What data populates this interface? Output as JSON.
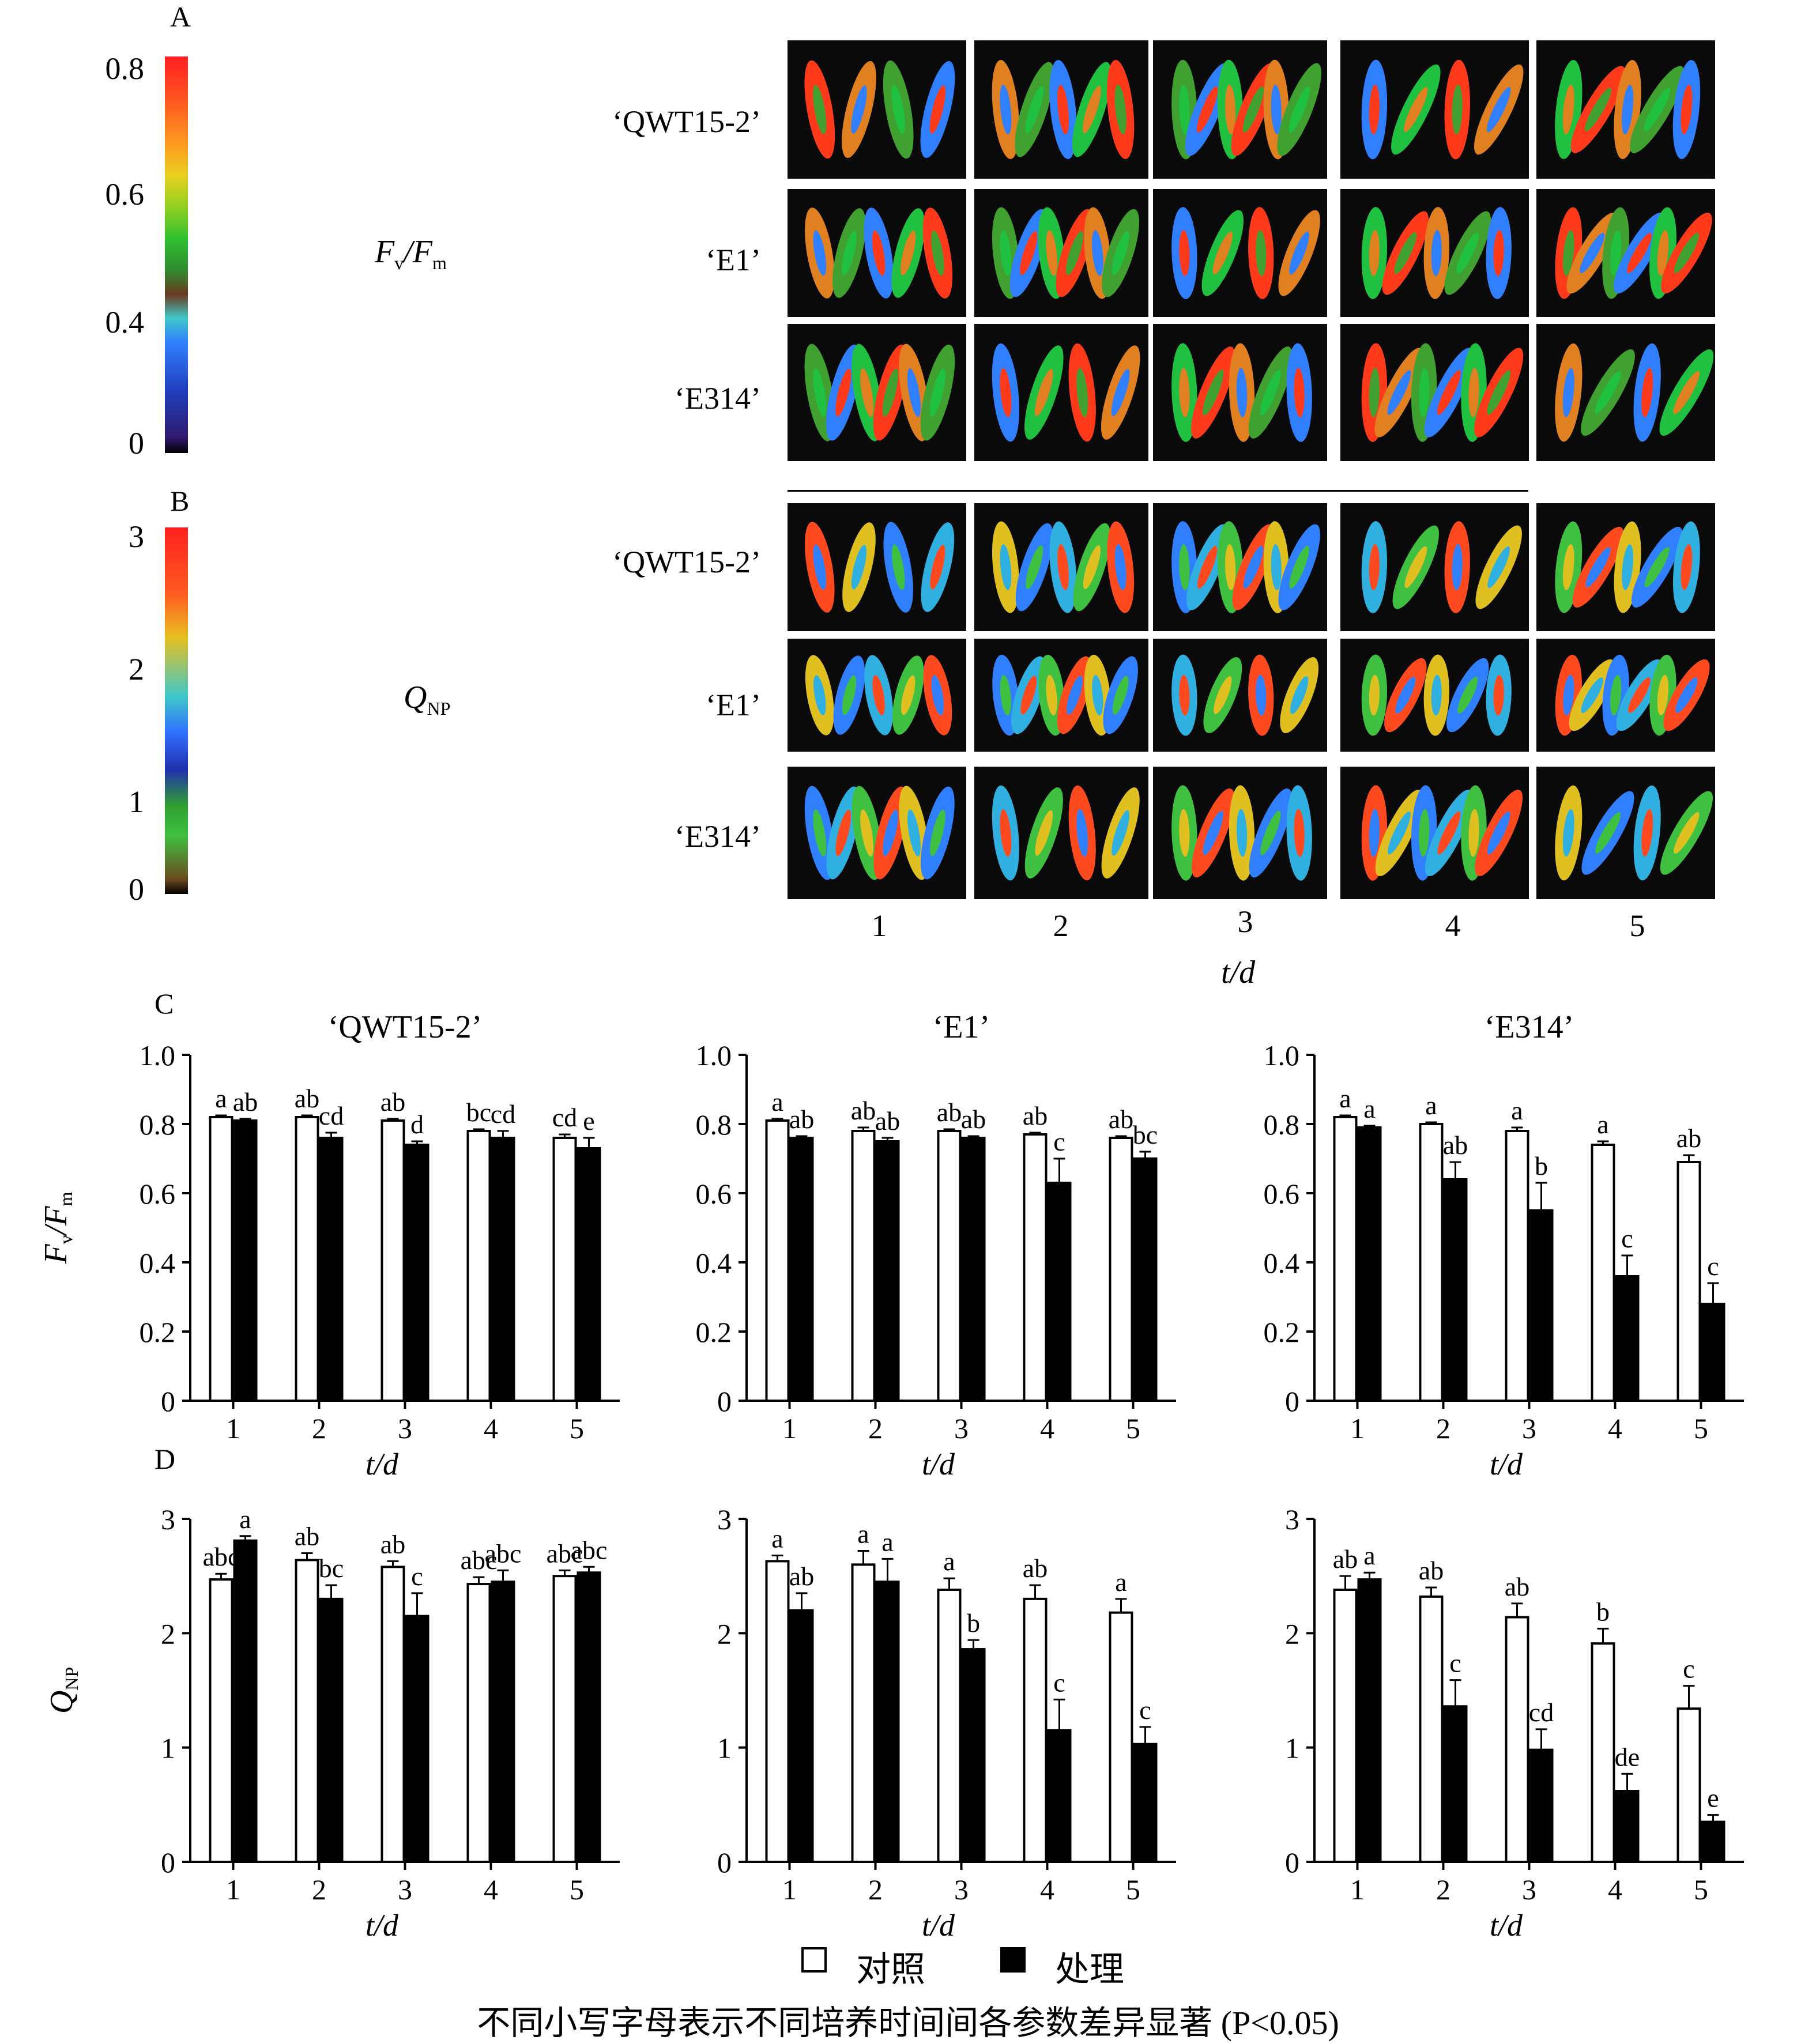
{
  "panels": {
    "a": "A",
    "b": "B",
    "c": "C",
    "d": "D"
  },
  "colorbar_a": {
    "ticks": [
      "0.8",
      "0.6",
      "0.4",
      "0"
    ]
  },
  "colorbar_b": {
    "ticks": [
      "3",
      "2",
      "1",
      "0"
    ]
  },
  "param_a": {
    "main": "F",
    "sub1": "v",
    "slash": "/F",
    "sub2": "m"
  },
  "param_b": {
    "main": "Q",
    "sub": "NP"
  },
  "cultivars": [
    "‘QWT15-2’",
    "‘E1’",
    "‘E314’"
  ],
  "day_labels": [
    "1",
    "2",
    "3",
    "4",
    "5"
  ],
  "time_axis": "t/d",
  "legend": {
    "control": "对照",
    "treatment": "处理",
    "control_color": "#ffffff",
    "treatment_color": "#000000"
  },
  "footnote": "不同小写字母表示不同培养时间间各参数差异显著 (P<0.05)",
  "chart_data": [
    {
      "type": "bar",
      "title": "‘QWT15-2’",
      "ylabel": "Fv/Fm",
      "xlabel": "t/d",
      "ylim": [
        0,
        1.0
      ],
      "yticks": [
        "0",
        "0.2",
        "0.4",
        "0.6",
        "0.8",
        "1.0"
      ],
      "categories": [
        "1",
        "2",
        "3",
        "4",
        "5"
      ],
      "series": [
        {
          "name": "对照",
          "values": [
            0.82,
            0.82,
            0.81,
            0.78,
            0.76
          ],
          "errors": [
            0.005,
            0.005,
            0.005,
            0.005,
            0.01
          ],
          "letters": [
            "a",
            "ab",
            "ab",
            "bc",
            "cd"
          ]
        },
        {
          "name": "处理",
          "values": [
            0.81,
            0.76,
            0.74,
            0.76,
            0.73
          ],
          "errors": [
            0.005,
            0.015,
            0.01,
            0.02,
            0.03
          ],
          "letters": [
            "ab",
            "cd",
            "d",
            "cd",
            "e"
          ]
        }
      ]
    },
    {
      "type": "bar",
      "title": "‘E1’",
      "ylabel": "",
      "xlabel": "t/d",
      "ylim": [
        0,
        1.0
      ],
      "yticks": [
        "0",
        "0.2",
        "0.4",
        "0.6",
        "0.8",
        "1.0"
      ],
      "categories": [
        "1",
        "2",
        "3",
        "4",
        "5"
      ],
      "series": [
        {
          "name": "对照",
          "values": [
            0.81,
            0.78,
            0.78,
            0.77,
            0.76
          ],
          "errors": [
            0.005,
            0.01,
            0.005,
            0.005,
            0.005
          ],
          "letters": [
            "a",
            "ab",
            "ab",
            "ab",
            "ab"
          ]
        },
        {
          "name": "处理",
          "values": [
            0.76,
            0.75,
            0.76,
            0.63,
            0.7
          ],
          "errors": [
            0.005,
            0.01,
            0.005,
            0.07,
            0.02
          ],
          "letters": [
            "ab",
            "ab",
            "ab",
            "c",
            "bc"
          ]
        }
      ]
    },
    {
      "type": "bar",
      "title": "‘E314’",
      "ylabel": "",
      "xlabel": "t/d",
      "ylim": [
        0,
        1.0
      ],
      "yticks": [
        "0",
        "0.2",
        "0.4",
        "0.6",
        "0.8",
        "1.0"
      ],
      "categories": [
        "1",
        "2",
        "3",
        "4",
        "5"
      ],
      "series": [
        {
          "name": "对照",
          "values": [
            0.82,
            0.8,
            0.78,
            0.74,
            0.69
          ],
          "errors": [
            0.005,
            0.005,
            0.01,
            0.01,
            0.02
          ],
          "letters": [
            "a",
            "a",
            "a",
            "a",
            "ab"
          ]
        },
        {
          "name": "处理",
          "values": [
            0.79,
            0.64,
            0.55,
            0.36,
            0.28
          ],
          "errors": [
            0.005,
            0.05,
            0.08,
            0.06,
            0.06
          ],
          "letters": [
            "a",
            "ab",
            "b",
            "c",
            "c"
          ]
        }
      ]
    },
    {
      "type": "bar",
      "title": "",
      "ylabel": "QNP",
      "xlabel": "t/d",
      "ylim": [
        0,
        3
      ],
      "yticks": [
        "0",
        "1",
        "2",
        "3"
      ],
      "categories": [
        "1",
        "2",
        "3",
        "4",
        "5"
      ],
      "series": [
        {
          "name": "对照",
          "values": [
            2.47,
            2.64,
            2.58,
            2.43,
            2.5
          ],
          "errors": [
            0.05,
            0.06,
            0.05,
            0.06,
            0.05
          ],
          "letters": [
            "abc",
            "ab",
            "ab",
            "abc",
            "abc"
          ]
        },
        {
          "name": "处理",
          "values": [
            2.81,
            2.3,
            2.15,
            2.45,
            2.53
          ],
          "errors": [
            0.04,
            0.12,
            0.2,
            0.1,
            0.05
          ],
          "letters": [
            "a",
            "bc",
            "c",
            "abc",
            "abc"
          ]
        }
      ]
    },
    {
      "type": "bar",
      "title": "",
      "ylabel": "",
      "xlabel": "t/d",
      "ylim": [
        0,
        3
      ],
      "yticks": [
        "0",
        "1",
        "2",
        "3"
      ],
      "categories": [
        "1",
        "2",
        "3",
        "4",
        "5"
      ],
      "series": [
        {
          "name": "对照",
          "values": [
            2.63,
            2.6,
            2.38,
            2.3,
            2.18
          ],
          "errors": [
            0.05,
            0.12,
            0.1,
            0.12,
            0.12
          ],
          "letters": [
            "a",
            "a",
            "a",
            "ab",
            "a"
          ]
        },
        {
          "name": "处理",
          "values": [
            2.2,
            2.45,
            1.86,
            1.15,
            1.03
          ],
          "errors": [
            0.15,
            0.2,
            0.08,
            0.27,
            0.15
          ],
          "letters": [
            "ab",
            "a",
            "b",
            "c",
            "c"
          ]
        }
      ]
    },
    {
      "type": "bar",
      "title": "",
      "ylabel": "",
      "xlabel": "t/d",
      "ylim": [
        0,
        3
      ],
      "yticks": [
        "0",
        "1",
        "2",
        "3"
      ],
      "categories": [
        "1",
        "2",
        "3",
        "4",
        "5"
      ],
      "series": [
        {
          "name": "对照",
          "values": [
            2.38,
            2.32,
            2.14,
            1.91,
            1.34
          ],
          "errors": [
            0.12,
            0.08,
            0.12,
            0.13,
            0.2
          ],
          "letters": [
            "ab",
            "ab",
            "ab",
            "b",
            "c"
          ]
        },
        {
          "name": "处理",
          "values": [
            2.47,
            1.36,
            0.98,
            0.62,
            0.35
          ],
          "errors": [
            0.06,
            0.23,
            0.18,
            0.15,
            0.06
          ],
          "letters": [
            "a",
            "c",
            "cd",
            "de",
            "e"
          ]
        }
      ]
    }
  ]
}
